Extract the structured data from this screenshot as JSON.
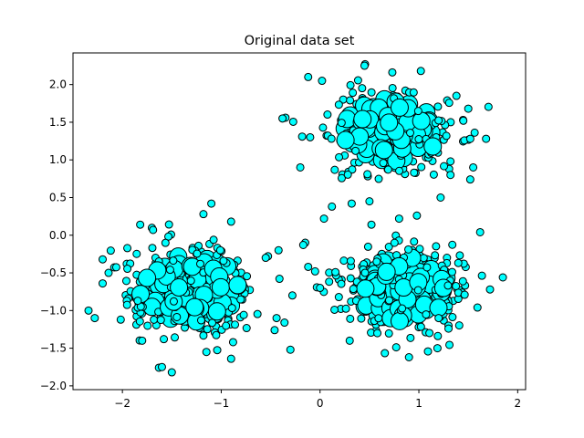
{
  "chart_data": {
    "type": "scatter",
    "title": "Original data set",
    "xlabel": "",
    "ylabel": "",
    "xlim": [
      -2.5,
      2.08
    ],
    "ylim": [
      -2.05,
      2.42
    ],
    "xticks": [
      -2,
      -1,
      0,
      1,
      2
    ],
    "yticks": [
      -2.0,
      -1.5,
      -1.0,
      -0.5,
      0.0,
      0.5,
      1.0,
      1.5,
      2.0
    ],
    "xtick_labels": [
      "−2",
      "−1",
      "0",
      "1",
      "2"
    ],
    "ytick_labels": [
      "−2.0",
      "−1.5",
      "−1.0",
      "−0.5",
      "0.0",
      "0.5",
      "1.0",
      "1.5",
      "2.0"
    ],
    "grid": false,
    "marker_color": "#00ffff",
    "marker_edge_color": "#000000",
    "clusters": [
      {
        "center": [
          0.72,
          1.38
        ],
        "spread": [
          0.36,
          0.32
        ],
        "count": 300
      },
      {
        "center": [
          -1.32,
          -0.72
        ],
        "spread": [
          0.38,
          0.34
        ],
        "count": 300
      },
      {
        "center": [
          0.86,
          -0.72
        ],
        "spread": [
          0.36,
          0.32
        ],
        "count": 300
      }
    ],
    "outliers": [
      [
        0.45,
        2.25
      ],
      [
        1.02,
        2.18
      ],
      [
        -0.12,
        2.1
      ],
      [
        0.02,
        2.05
      ],
      [
        1.38,
        1.85
      ],
      [
        1.5,
        1.68
      ],
      [
        -0.35,
        1.56
      ],
      [
        -0.38,
        1.55
      ],
      [
        1.68,
        1.28
      ],
      [
        1.52,
        1.28
      ],
      [
        1.32,
        0.98
      ],
      [
        1.55,
        0.9
      ],
      [
        -0.2,
        0.9
      ],
      [
        1.32,
        0.8
      ],
      [
        1.52,
        0.74
      ],
      [
        1.22,
        0.5
      ],
      [
        0.32,
        0.42
      ],
      [
        0.5,
        0.45
      ],
      [
        0.12,
        0.38
      ],
      [
        0.04,
        0.22
      ],
      [
        0.8,
        0.22
      ],
      [
        0.98,
        0.26
      ],
      [
        0.52,
        0.14
      ],
      [
        -0.9,
        0.18
      ],
      [
        -1.1,
        0.42
      ],
      [
        -1.18,
        0.28
      ],
      [
        -1.82,
        0.14
      ],
      [
        -0.42,
        -0.2
      ],
      [
        -0.15,
        -0.1
      ],
      [
        -0.17,
        -0.13
      ],
      [
        -0.12,
        -0.42
      ],
      [
        -0.05,
        -0.48
      ],
      [
        -0.28,
        -0.8
      ],
      [
        -2.2,
        -0.32
      ],
      [
        -2.14,
        -0.5
      ],
      [
        -2.2,
        -0.64
      ],
      [
        -2.28,
        -1.1
      ],
      [
        -0.44,
        -1.1
      ],
      [
        -0.36,
        -1.16
      ],
      [
        -0.46,
        -1.26
      ],
      [
        -0.3,
        -1.52
      ],
      [
        -1.8,
        -1.4
      ],
      [
        -1.6,
        -1.75
      ],
      [
        -1.5,
        -1.82
      ],
      [
        -1.15,
        -1.55
      ],
      [
        -0.9,
        -1.64
      ],
      [
        -0.88,
        -1.42
      ],
      [
        1.62,
        0.04
      ],
      [
        1.85,
        -0.56
      ],
      [
        1.72,
        -0.72
      ],
      [
        1.3,
        -1.2
      ],
      [
        1.3,
        -1.24
      ],
      [
        0.9,
        -1.62
      ],
      [
        0.3,
        -1.4
      ],
      [
        0.58,
        -1.3
      ],
      [
        1.2,
        -1.1
      ],
      [
        -0.55,
        -0.3
      ],
      [
        0.0,
        -0.7
      ],
      [
        1.45,
        1.52
      ],
      [
        -0.1,
        1.3
      ]
    ],
    "size_small": 7,
    "size_large": 16,
    "seed": 7
  }
}
